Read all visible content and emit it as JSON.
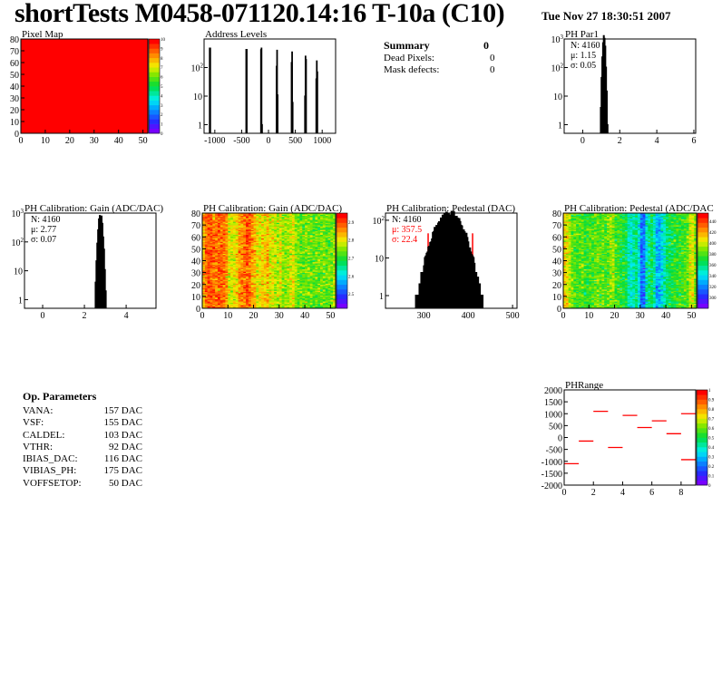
{
  "header": {
    "title": "shortTests M0458-071120.14:16 T-10a (C10)",
    "date": "Tue Nov 27 18:30:51 2007"
  },
  "summary": {
    "title": "Summary",
    "total": "0",
    "rows": [
      {
        "label": "Dead Pixels:",
        "value": "0"
      },
      {
        "label": "Mask defects:",
        "value": "0"
      }
    ]
  },
  "op_parameters": {
    "title": "Op. Parameters",
    "rows": [
      {
        "label": "VANA:",
        "value": "157 DAC"
      },
      {
        "label": "VSF:",
        "value": "155 DAC"
      },
      {
        "label": "CALDEL:",
        "value": "103 DAC"
      },
      {
        "label": "VTHR:",
        "value": "92 DAC"
      },
      {
        "label": "IBIAS_DAC:",
        "value": "116 DAC"
      },
      {
        "label": "VIBIAS_PH:",
        "value": "175 DAC"
      },
      {
        "label": "VOFFSETOP:",
        "value": "50 DAC"
      }
    ]
  },
  "chart_data": [
    {
      "id": "pixelmap",
      "type": "heatmap",
      "title": "Pixel Map",
      "xlim": [
        0,
        52
      ],
      "ylim": [
        0,
        80
      ],
      "zlim": [
        0,
        10
      ],
      "xticks": [
        "0",
        "10",
        "20",
        "30",
        "40",
        "50"
      ],
      "yticks": [
        "0",
        "10",
        "20",
        "30",
        "40",
        "50",
        "60",
        "70",
        "80"
      ],
      "zticks": [
        "0",
        "1",
        "2",
        "3",
        "4",
        "5",
        "6",
        "7",
        "8",
        "9",
        "10"
      ],
      "uniform_value": 10
    },
    {
      "id": "addr",
      "type": "bar",
      "title": "Address Levels",
      "log_y": true,
      "xlim": [
        -1200,
        1250
      ],
      "ylim": [
        0.5,
        1000
      ],
      "xticks": [
        "-1000",
        "-500",
        "0",
        "500",
        "1000"
      ],
      "yticks": [
        "1",
        "10",
        "10^2"
      ],
      "bins": [
        {
          "x": -1095,
          "y": 480
        },
        {
          "x": -1085,
          "y": 480
        },
        {
          "x": -415,
          "y": 430
        },
        {
          "x": -405,
          "y": 430
        },
        {
          "x": -140,
          "y": 420
        },
        {
          "x": -130,
          "y": 480
        },
        {
          "x": -120,
          "y": 1
        },
        {
          "x": 150,
          "y": 110
        },
        {
          "x": 160,
          "y": 400
        },
        {
          "x": 170,
          "y": 11
        },
        {
          "x": 430,
          "y": 150
        },
        {
          "x": 440,
          "y": 350
        },
        {
          "x": 450,
          "y": 6
        },
        {
          "x": 680,
          "y": 10
        },
        {
          "x": 690,
          "y": 250
        },
        {
          "x": 700,
          "y": 190
        },
        {
          "x": 890,
          "y": 40
        },
        {
          "x": 900,
          "y": 170
        },
        {
          "x": 910,
          "y": 70
        }
      ]
    },
    {
      "id": "phpar1",
      "type": "bar",
      "title": "PH Par1",
      "log_y": true,
      "xlim": [
        -1,
        6.1
      ],
      "ylim": [
        0.5,
        1000
      ],
      "xticks": [
        "0",
        "2",
        "4",
        "6"
      ],
      "yticks": [
        "1",
        "10",
        "10^2",
        "10^3"
      ],
      "stats": {
        "N": "N: 4160",
        "mean": "μ: 1.15",
        "sigma": "σ: 0.05"
      },
      "gauss": {
        "n": 4160,
        "mean": 1.15,
        "sigma": 0.05,
        "bin": 0.04
      }
    },
    {
      "id": "gainhist",
      "type": "bar",
      "title": "PH Calibration: Gain (ADC/DAC)",
      "log_y": true,
      "xlim": [
        -0.87,
        5.43
      ],
      "ylim": [
        0.5,
        1000
      ],
      "xticks": [
        "0",
        "2",
        "4"
      ],
      "yticks": [
        "1",
        "10",
        "10^2",
        "10^3"
      ],
      "stats": {
        "N": "N: 4160",
        "mean": "μ: 2.77",
        "sigma": "σ: 0.07"
      },
      "gauss": {
        "n": 4160,
        "mean": 2.77,
        "sigma": 0.07,
        "bin": 0.04
      }
    },
    {
      "id": "gainmap",
      "type": "heatmap",
      "title": "PH Calibration: Gain (ADC/DAC)",
      "xlim": [
        0,
        52
      ],
      "ylim": [
        0,
        80
      ],
      "zlim": [
        2.42,
        2.95
      ],
      "xticks": [
        "0",
        "10",
        "20",
        "30",
        "40",
        "50"
      ],
      "yticks": [
        "0",
        "10",
        "20",
        "30",
        "40",
        "50",
        "60",
        "70",
        "80"
      ],
      "zticks": [
        "2.5",
        "2.6",
        "2.7",
        "2.8",
        "2.9"
      ],
      "column_profile": [
        2.84,
        2.88,
        2.9,
        2.9,
        2.89,
        2.88,
        2.9,
        2.89,
        2.88,
        2.86,
        2.8,
        2.79,
        2.8,
        2.82,
        2.86,
        2.87,
        2.88,
        2.9,
        2.88,
        2.86,
        2.84,
        2.8,
        2.8,
        2.82,
        2.81,
        2.84,
        2.8,
        2.79,
        2.78,
        2.77,
        2.8,
        2.76,
        2.76,
        2.77,
        2.78,
        2.8,
        2.76,
        2.75,
        2.74,
        2.74,
        2.75,
        2.74,
        2.74,
        2.73,
        2.74,
        2.73,
        2.74,
        2.75,
        2.73,
        2.74,
        2.74,
        2.76
      ]
    },
    {
      "id": "pedhist",
      "type": "bar",
      "title": "PH Calibration: Pedestal (DAC)",
      "log_y": true,
      "xlim": [
        214,
        510
      ],
      "ylim": [
        0.46,
        155
      ],
      "xticks": [
        "300",
        "400",
        "500"
      ],
      "yticks": [
        "1",
        "10",
        "10^2"
      ],
      "stats": {
        "N": "N: 4160",
        "mean": "μ: 357.5",
        "sigma": "σ: 22.4"
      },
      "gauss": {
        "n": 4160,
        "mean": 357.5,
        "sigma": 22.4,
        "bin": 2
      },
      "fit_range": [
        310,
        410
      ],
      "fit_color": "#ff0000"
    },
    {
      "id": "pedmap",
      "type": "heatmap",
      "title": "PH Calibration: Pedestal (ADC/DAC",
      "xlim": [
        0,
        52
      ],
      "ylim": [
        0,
        80
      ],
      "zlim": [
        280,
        455
      ],
      "xticks": [
        "0",
        "10",
        "20",
        "30",
        "40",
        "50"
      ],
      "yticks": [
        "0",
        "10",
        "20",
        "30",
        "40",
        "50",
        "60",
        "70",
        "80"
      ],
      "zticks": [
        "300",
        "320",
        "340",
        "360",
        "380",
        "400",
        "420",
        "440"
      ],
      "column_profile": [
        410,
        405,
        395,
        385,
        380,
        378,
        380,
        382,
        375,
        372,
        380,
        378,
        382,
        385,
        380,
        383,
        378,
        386,
        390,
        392,
        380,
        378,
        372,
        370,
        368,
        350,
        345,
        352,
        360,
        340,
        312,
        316,
        345,
        355,
        365,
        352,
        330,
        328,
        340,
        350,
        360,
        365,
        370,
        372,
        375,
        378,
        376,
        380,
        382,
        400,
        405,
        390
      ]
    },
    {
      "id": "phrange",
      "type": "segments",
      "title": "PHRange",
      "xlim": [
        0,
        9
      ],
      "ylim": [
        -2000,
        2000
      ],
      "zlim": [
        0,
        1
      ],
      "xticks": [
        "0",
        "2",
        "4",
        "6",
        "8"
      ],
      "yticks": [
        "-2000",
        "-1500",
        "-1000",
        "-500",
        "0",
        "500",
        "1000",
        "1500",
        "2000"
      ],
      "zticks": [
        "0",
        "0.1",
        "0.2",
        "0.3",
        "0.4",
        "0.5",
        "0.6",
        "0.7",
        "0.8",
        "0.9",
        "1"
      ],
      "color": "#ff0000",
      "segments": [
        {
          "x": [
            0,
            1
          ],
          "y": -1100
        },
        {
          "x": [
            1,
            2
          ],
          "y": -150
        },
        {
          "x": [
            2,
            3
          ],
          "y": 1100
        },
        {
          "x": [
            3,
            4
          ],
          "y": -420
        },
        {
          "x": [
            4,
            5
          ],
          "y": 930
        },
        {
          "x": [
            5,
            6
          ],
          "y": 420
        },
        {
          "x": [
            6,
            7
          ],
          "y": 700
        },
        {
          "x": [
            7,
            8
          ],
          "y": 160
        },
        {
          "x": [
            8,
            9
          ],
          "y": 1000
        },
        {
          "x": [
            8,
            9
          ],
          "y": -930
        }
      ]
    }
  ]
}
